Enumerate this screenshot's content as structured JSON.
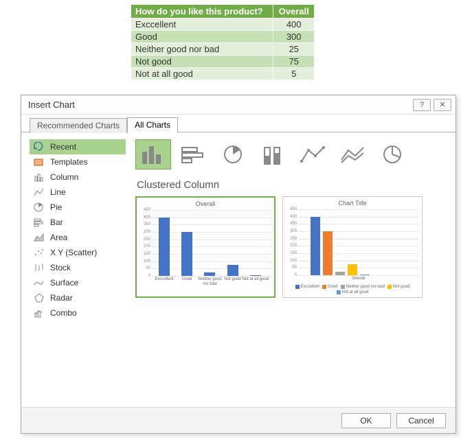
{
  "table": {
    "header_bg": "#70ad47",
    "header_fg": "#ffffff",
    "row_even_bg": "#e2efda",
    "row_odd_bg": "#c5e0b4",
    "columns": [
      "How do you like this product?",
      "Overall"
    ],
    "rows": [
      [
        "Exccellent",
        "400"
      ],
      [
        "Good",
        "300"
      ],
      [
        "Neither good nor bad",
        "25"
      ],
      [
        "Not good",
        "75"
      ],
      [
        "Not at all good",
        "5"
      ]
    ]
  },
  "dialog": {
    "title": "Insert Chart",
    "tabs": {
      "recommended": "Recommended Charts",
      "all": "All Charts"
    },
    "sidebar": {
      "items": [
        {
          "label": "Recent"
        },
        {
          "label": "Templates"
        },
        {
          "label": "Column"
        },
        {
          "label": "Line"
        },
        {
          "label": "Pie"
        },
        {
          "label": "Bar"
        },
        {
          "label": "Area"
        },
        {
          "label": "X Y (Scatter)"
        },
        {
          "label": "Stock"
        },
        {
          "label": "Surface"
        },
        {
          "label": "Radar"
        },
        {
          "label": "Combo"
        }
      ],
      "active_index": 0
    },
    "type_row_kinds": [
      "clustered-column",
      "bar",
      "pie",
      "stacked-column",
      "line-markers",
      "line",
      "pie2"
    ],
    "preview_title": "Clustered Column",
    "footer": {
      "ok": "OK",
      "cancel": "Cancel"
    }
  },
  "chart_single": {
    "type": "bar",
    "title": "Overall",
    "categories": [
      "Exccellent",
      "Good",
      "Neither good nor bad",
      "Not good",
      "Not at all good"
    ],
    "values": [
      400,
      300,
      25,
      75,
      5
    ],
    "bar_color": "#4472c4",
    "ylim": [
      0,
      450
    ],
    "ytick_step": 50,
    "grid_color": "#e6e6e6",
    "background_color": "#ffffff"
  },
  "chart_multi": {
    "type": "bar",
    "title": "Chart Title",
    "xlabel": "Overall",
    "categories": [
      "Exccellent",
      "Good",
      "Neither good nor bad",
      "Not good",
      "Not at all good"
    ],
    "values": [
      400,
      300,
      25,
      75,
      5
    ],
    "bar_colors": [
      "#4472c4",
      "#ed7d31",
      "#a5a5a5",
      "#ffc000",
      "#5b9bd5"
    ],
    "ylim": [
      0,
      450
    ],
    "ytick_step": 50,
    "grid_color": "#e6e6e6",
    "background_color": "#ffffff"
  },
  "icon_stroke": "#888888",
  "accent_green": "#a9d18e"
}
